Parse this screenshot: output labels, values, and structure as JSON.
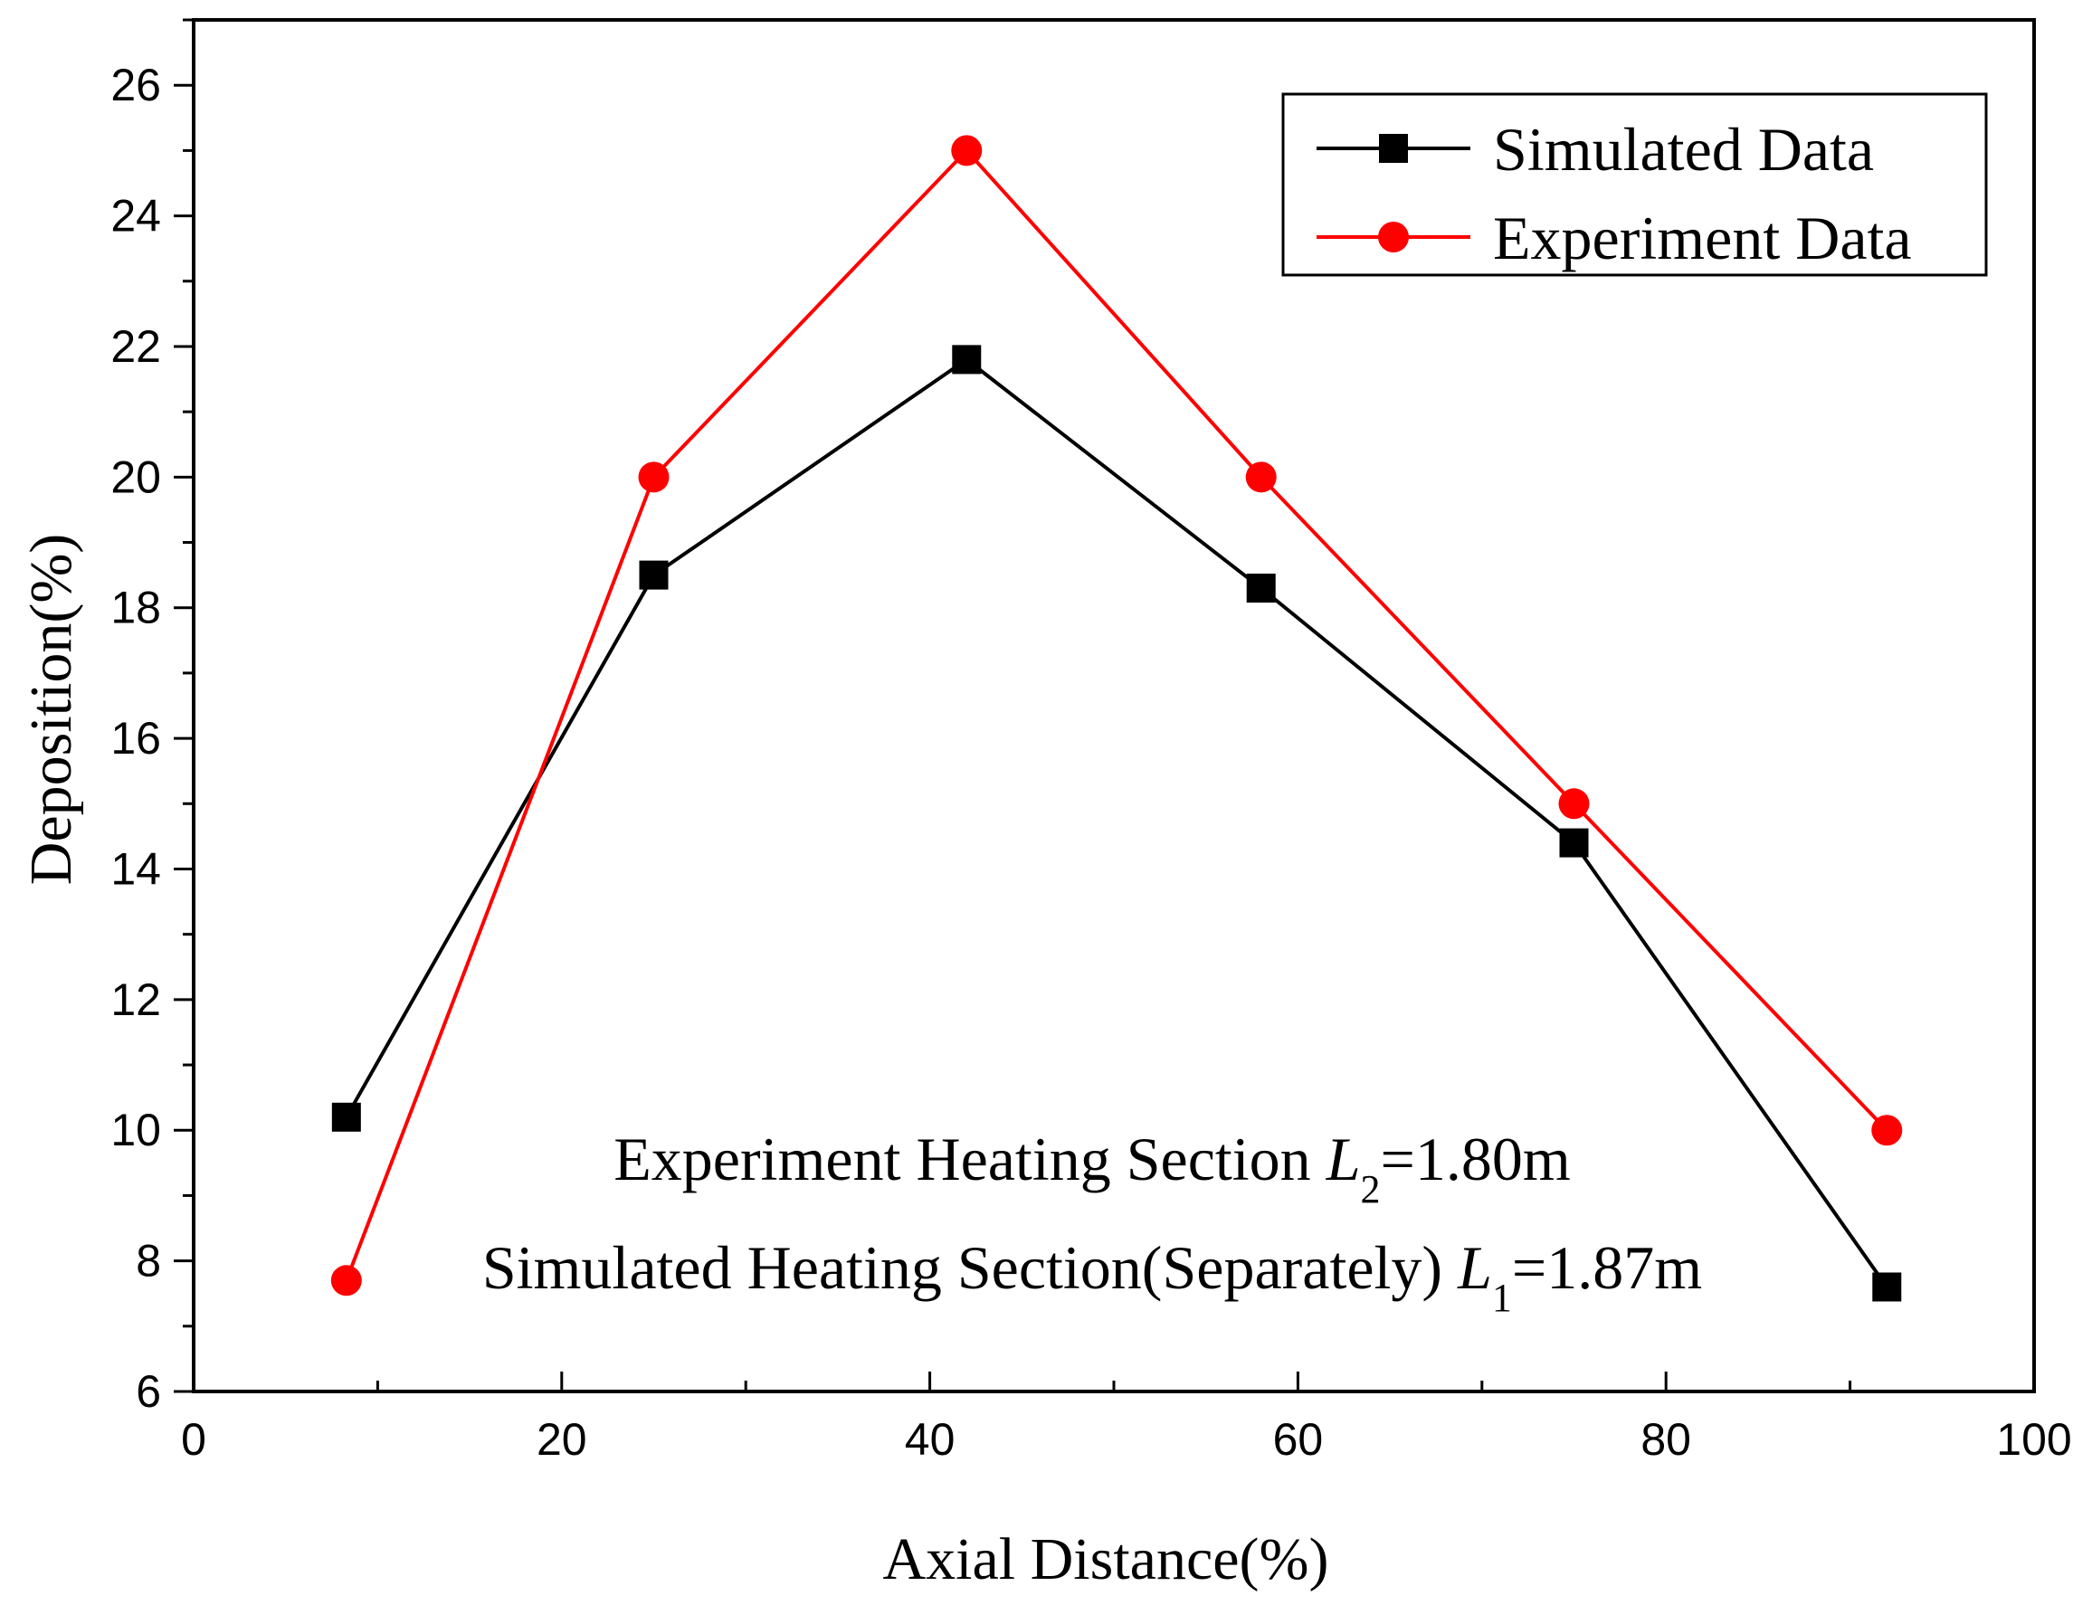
{
  "chart_data": {
    "type": "line",
    "title": "",
    "xlabel": "Axial Distance(%)",
    "ylabel": "Deposition(%)",
    "xlim": [
      0,
      100
    ],
    "ylim": [
      6,
      27
    ],
    "x_ticks": [
      0,
      20,
      40,
      60,
      80,
      100
    ],
    "x_tick_labels": [
      "0",
      "20",
      "40",
      "60",
      "80",
      "100"
    ],
    "y_ticks": [
      6,
      8,
      10,
      12,
      14,
      16,
      18,
      20,
      22,
      24,
      26
    ],
    "y_tick_labels": [
      "6",
      "8",
      "10",
      "12",
      "14",
      "16",
      "18",
      "20",
      "22",
      "24",
      "26"
    ],
    "grid": false,
    "legend_position": "top-right",
    "series": [
      {
        "name": "Simulated Data",
        "marker": "square",
        "color": "#000000",
        "x": [
          8.3,
          25,
          42,
          58,
          75,
          92
        ],
        "y": [
          10.2,
          18.5,
          21.8,
          18.3,
          14.4,
          7.6
        ]
      },
      {
        "name": "Experiment Data",
        "marker": "circle",
        "color": "#ff0000",
        "x": [
          8.3,
          25,
          42,
          58,
          75,
          92
        ],
        "y": [
          7.7,
          20.0,
          25.0,
          20.0,
          15.0,
          10.0
        ]
      }
    ],
    "annotations": [
      {
        "prefix": "Experiment Heating Section ",
        "var": "L",
        "sub": "2",
        "suffix": "=1.80m"
      },
      {
        "prefix": "Simulated Heating Section(Separately) ",
        "var": "L",
        "sub": "1",
        "suffix": "=1.87m"
      }
    ]
  }
}
